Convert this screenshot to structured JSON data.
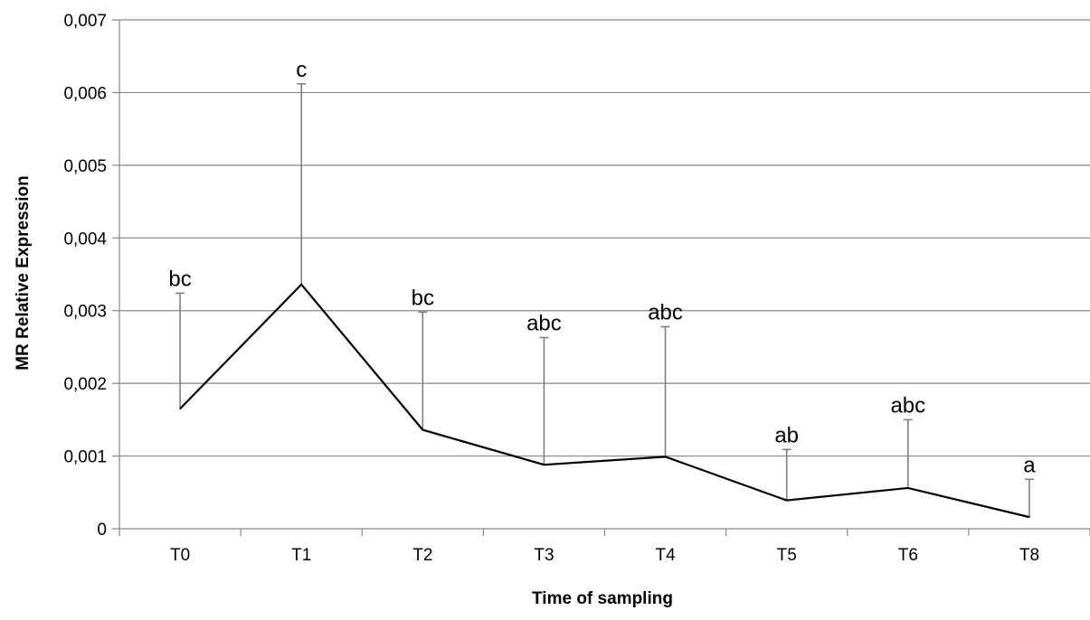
{
  "chart_data": {
    "type": "line",
    "title": "",
    "xlabel": "Time of sampling",
    "ylabel": "MR Relative Expression",
    "categories": [
      "T0",
      "T1",
      "T2",
      "T3",
      "T4",
      "T5",
      "T6",
      "T8"
    ],
    "series": [
      {
        "values": [
          0.00165,
          0.00336,
          0.00136,
          0.00088,
          0.00099,
          0.00039,
          0.00056,
          0.00016
        ],
        "error_upper": [
          0.00324,
          0.00612,
          0.00298,
          0.00263,
          0.00278,
          0.00109,
          0.0015,
          0.00068
        ],
        "significance_labels": [
          "bc",
          "c",
          "bc",
          "abc",
          "abc",
          "ab",
          "abc",
          "a"
        ]
      }
    ],
    "ylim": [
      0,
      0.007
    ],
    "yticks": [
      0,
      0.001,
      0.002,
      0.003,
      0.004,
      0.005,
      0.006,
      0.007
    ],
    "ytick_labels": [
      "0",
      "0,001",
      "0,002",
      "0,003",
      "0,004",
      "0,005",
      "0,006",
      "0,007"
    ],
    "grid": true,
    "legend": "none",
    "colors": {
      "line": "#000000",
      "error_bar": "#808080",
      "grid": "#868686",
      "axis": "#868686"
    }
  }
}
